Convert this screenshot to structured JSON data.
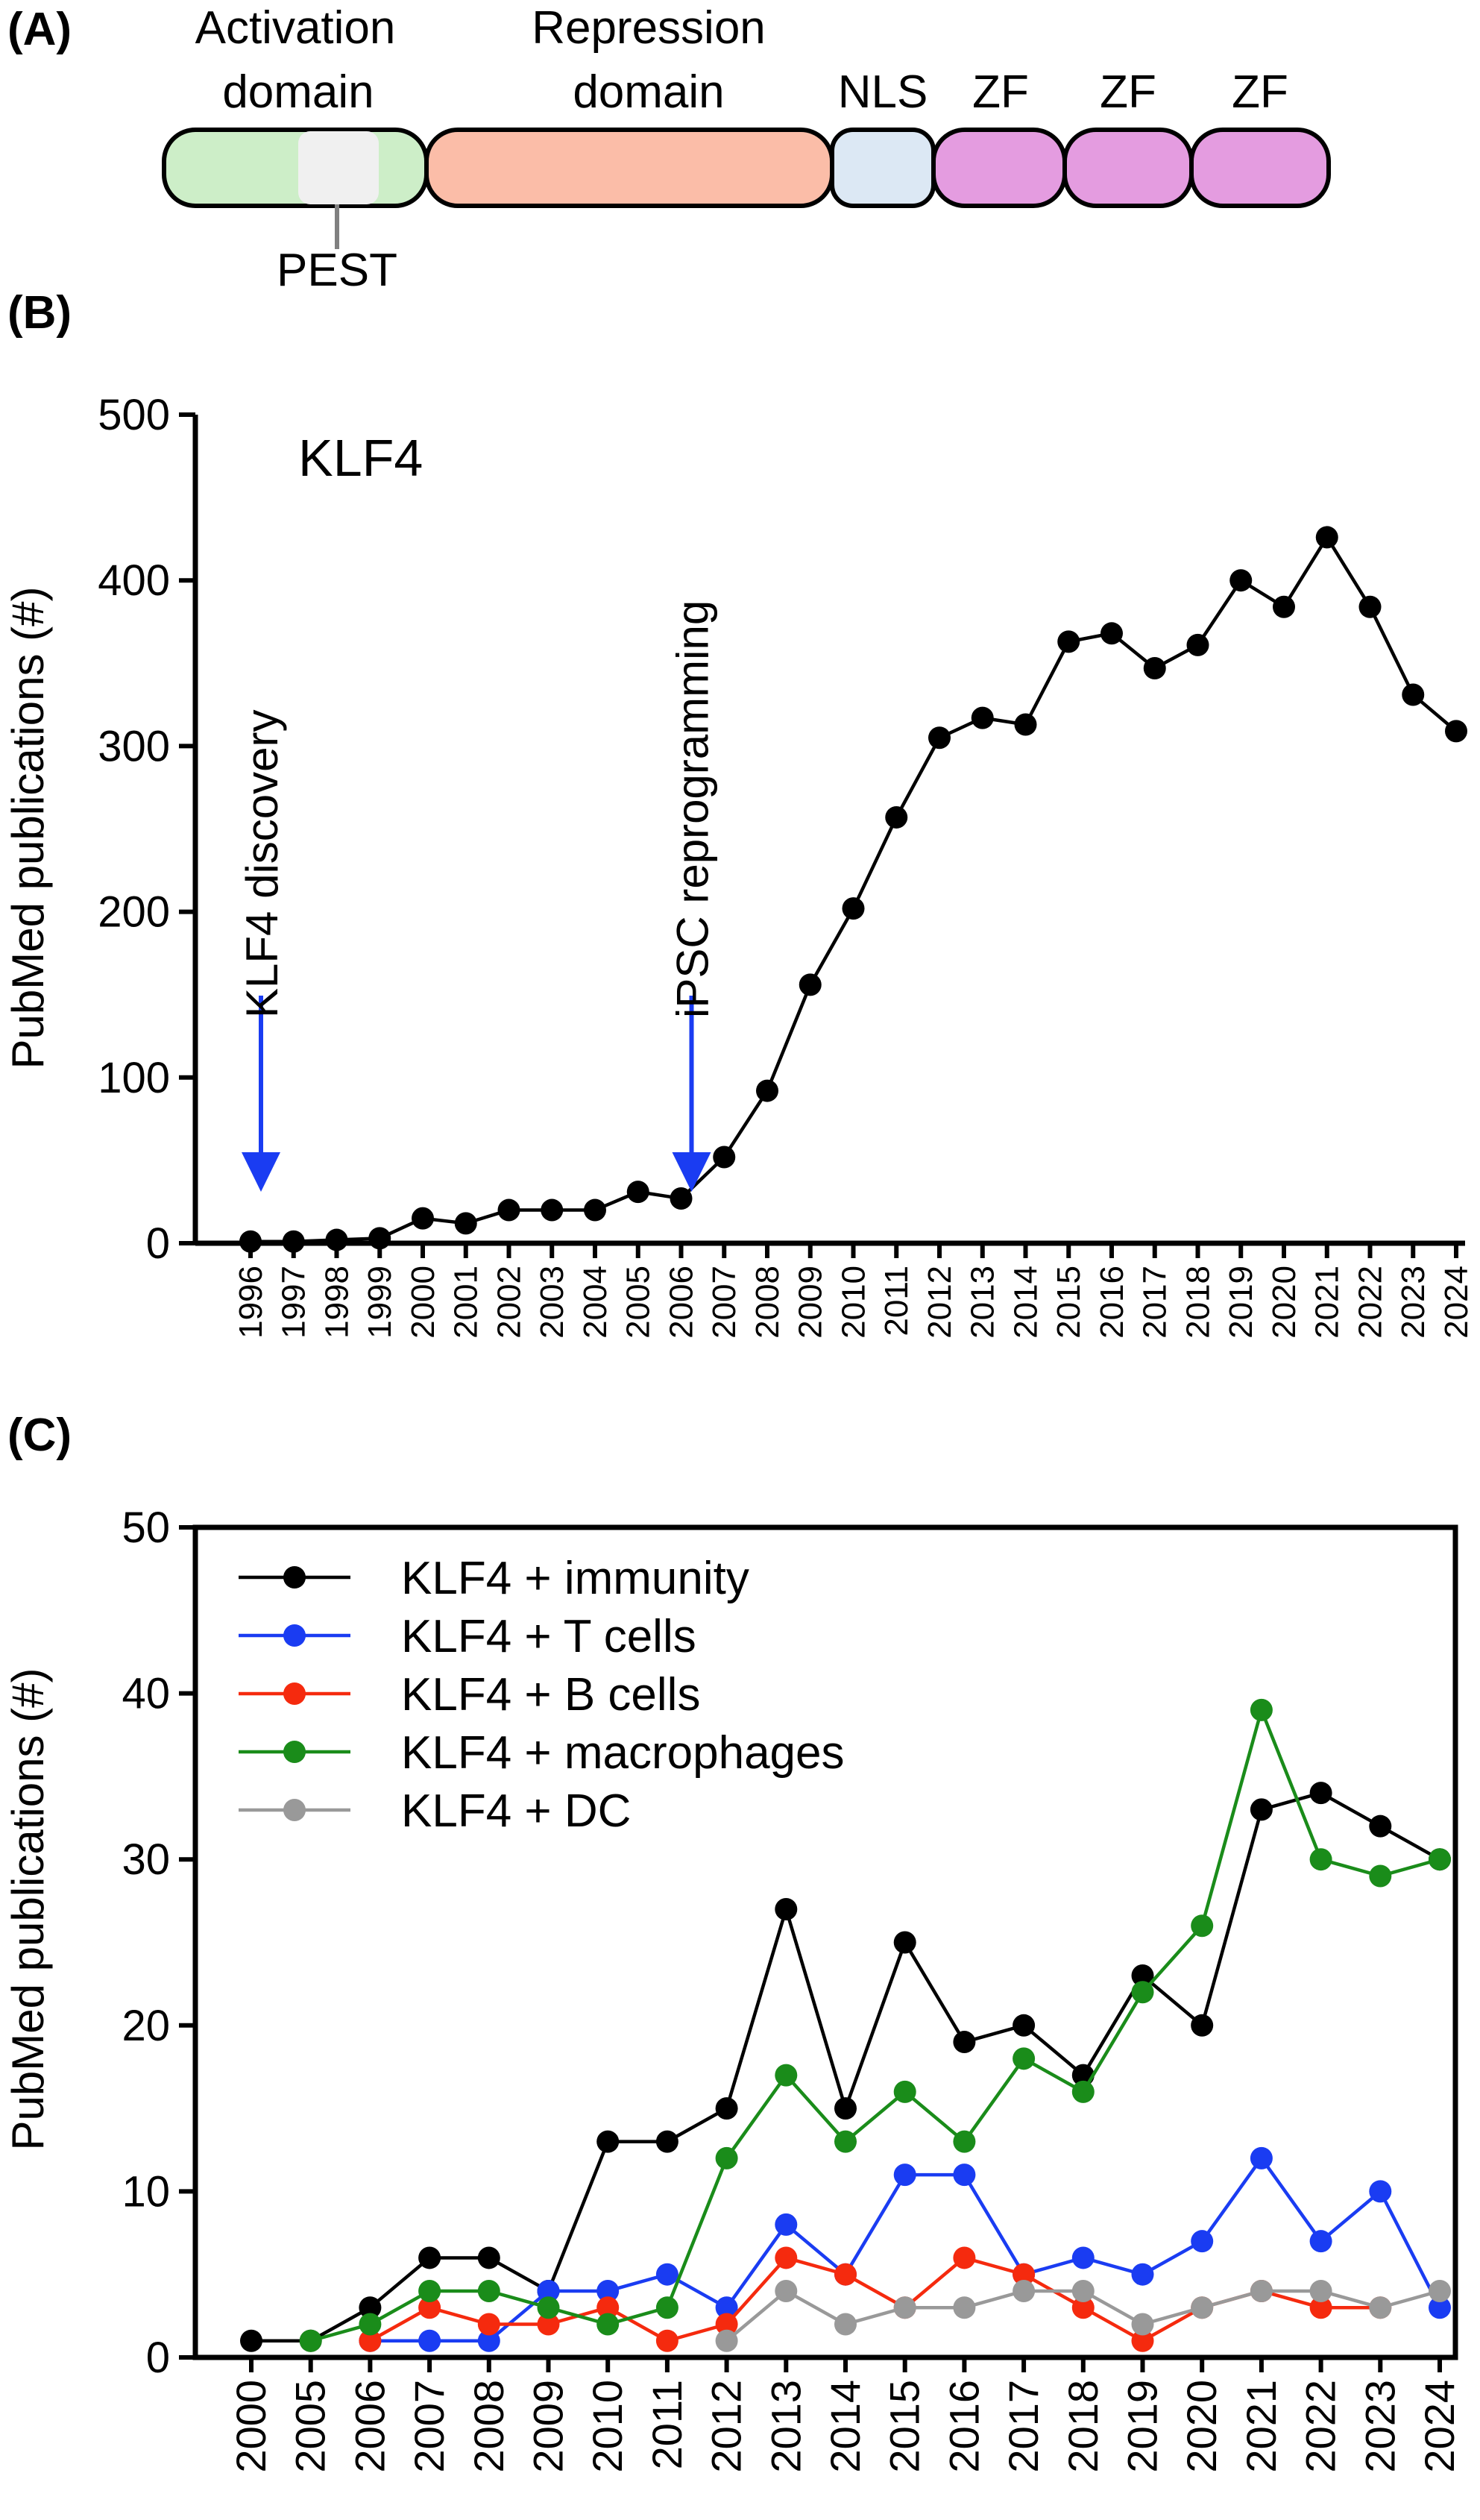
{
  "panels": {
    "a_label": "(A)",
    "b_label": "(B)",
    "c_label": "(C)"
  },
  "domain_diagram": {
    "domains": [
      {
        "line1": "Activation",
        "line2": "domain",
        "color": "#cdeec8"
      },
      {
        "line1": "Repression",
        "line2": "domain",
        "color": "#fbbda8"
      },
      {
        "line1": "",
        "line2": "NLS",
        "color": "#dce8f4"
      },
      {
        "line1": "",
        "line2": "ZF",
        "color": "#e49ce0"
      },
      {
        "line1": "",
        "line2": "ZF",
        "color": "#e49ce0"
      },
      {
        "line1": "",
        "line2": "ZF",
        "color": "#e49ce0"
      }
    ],
    "pest_label": "PEST",
    "pest_color": "#f0f0f0"
  },
  "chart_data": [
    {
      "type": "line",
      "title": "KLF4",
      "xlabel": "",
      "ylabel": "PubMed publications (#)",
      "ylim": [
        0,
        500
      ],
      "yticks": [
        0,
        100,
        200,
        300,
        400,
        500
      ],
      "categories": [
        "1996",
        "1997",
        "1998",
        "1999",
        "2000",
        "2001",
        "2002",
        "2003",
        "2004",
        "2005",
        "2006",
        "2007",
        "2008",
        "2009",
        "2010",
        "2011",
        "2012",
        "2013",
        "2014",
        "2015",
        "2016",
        "2017",
        "2018",
        "2019",
        "2020",
        "2021",
        "2022",
        "2023",
        "2024"
      ],
      "series": [
        {
          "name": "KLF4",
          "color": "#000000",
          "values": [
            1,
            1,
            2,
            3,
            15,
            12,
            20,
            20,
            20,
            31,
            27,
            52,
            92,
            156,
            202,
            257,
            305,
            317,
            313,
            363,
            368,
            347,
            361,
            400,
            384,
            426,
            384,
            331,
            309
          ]
        }
      ],
      "annotations": [
        {
          "text": "KLF4 discovery",
          "category": "1996",
          "color": "#1a3cf2"
        },
        {
          "text": "iPSC reprogramming",
          "category": "2006",
          "color": "#1a3cf2"
        }
      ]
    },
    {
      "type": "line",
      "title": "",
      "xlabel": "",
      "ylabel": "PubMed publications (#)",
      "ylim": [
        0,
        50
      ],
      "yticks": [
        0,
        10,
        20,
        30,
        40,
        50
      ],
      "legend_position": "top-left",
      "categories": [
        "2000",
        "2005",
        "2006",
        "2007",
        "2008",
        "2009",
        "2010",
        "2011",
        "2012",
        "2013",
        "2014",
        "2015",
        "2016",
        "2017",
        "2018",
        "2019",
        "2020",
        "2021",
        "2022",
        "2023",
        "2024"
      ],
      "series": [
        {
          "name": "KLF4 + immunity",
          "color": "#000000",
          "values": [
            1,
            1,
            3,
            6,
            6,
            4,
            13,
            13,
            15,
            27,
            15,
            25,
            19,
            20,
            17,
            23,
            20,
            33,
            34,
            32,
            30
          ]
        },
        {
          "name": "KLF4 + T cells",
          "color": "#1a3cf2",
          "values": [
            null,
            null,
            1,
            1,
            1,
            4,
            4,
            5,
            3,
            8,
            5,
            11,
            11,
            5,
            6,
            5,
            7,
            12,
            7,
            10,
            3
          ]
        },
        {
          "name": "KLF4 + B cells",
          "color": "#f52a0e",
          "values": [
            null,
            null,
            1,
            3,
            2,
            2,
            3,
            1,
            2,
            6,
            5,
            3,
            6,
            5,
            3,
            1,
            3,
            4,
            3,
            3,
            null
          ]
        },
        {
          "name": "KLF4 + macrophages",
          "color": "#1a8c1a",
          "values": [
            null,
            1,
            2,
            4,
            4,
            3,
            2,
            3,
            12,
            17,
            13,
            16,
            13,
            18,
            16,
            22,
            26,
            39,
            30,
            29,
            30
          ]
        },
        {
          "name": "KLF4 + DC",
          "color": "#999999",
          "values": [
            null,
            null,
            null,
            null,
            null,
            null,
            null,
            null,
            1,
            4,
            2,
            3,
            3,
            4,
            4,
            2,
            3,
            4,
            4,
            3,
            4
          ]
        }
      ]
    }
  ]
}
